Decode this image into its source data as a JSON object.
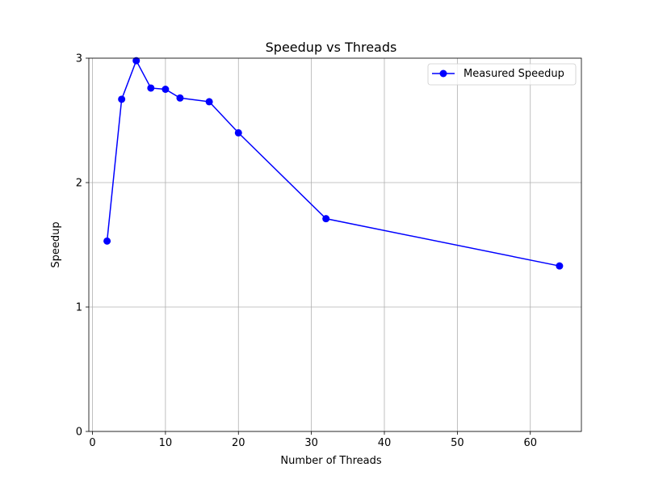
{
  "chart_data": {
    "type": "line",
    "title": "Speedup vs Threads",
    "xlabel": "Number of Threads",
    "ylabel": "Speedup",
    "xlim": [
      -0.5,
      67
    ],
    "ylim": [
      0,
      3
    ],
    "xticks": [
      0,
      10,
      20,
      30,
      40,
      50,
      60
    ],
    "yticks": [
      0,
      1,
      2,
      3
    ],
    "grid": true,
    "legend_position": "top-right",
    "series": [
      {
        "name": "Measured Speedup",
        "color": "#0000ff",
        "marker": "circle",
        "x": [
          2,
          4,
          6,
          8,
          10,
          12,
          16,
          20,
          32,
          64
        ],
        "y": [
          1.53,
          2.67,
          2.98,
          2.76,
          2.75,
          2.68,
          2.65,
          2.4,
          1.71,
          1.33
        ]
      }
    ]
  }
}
